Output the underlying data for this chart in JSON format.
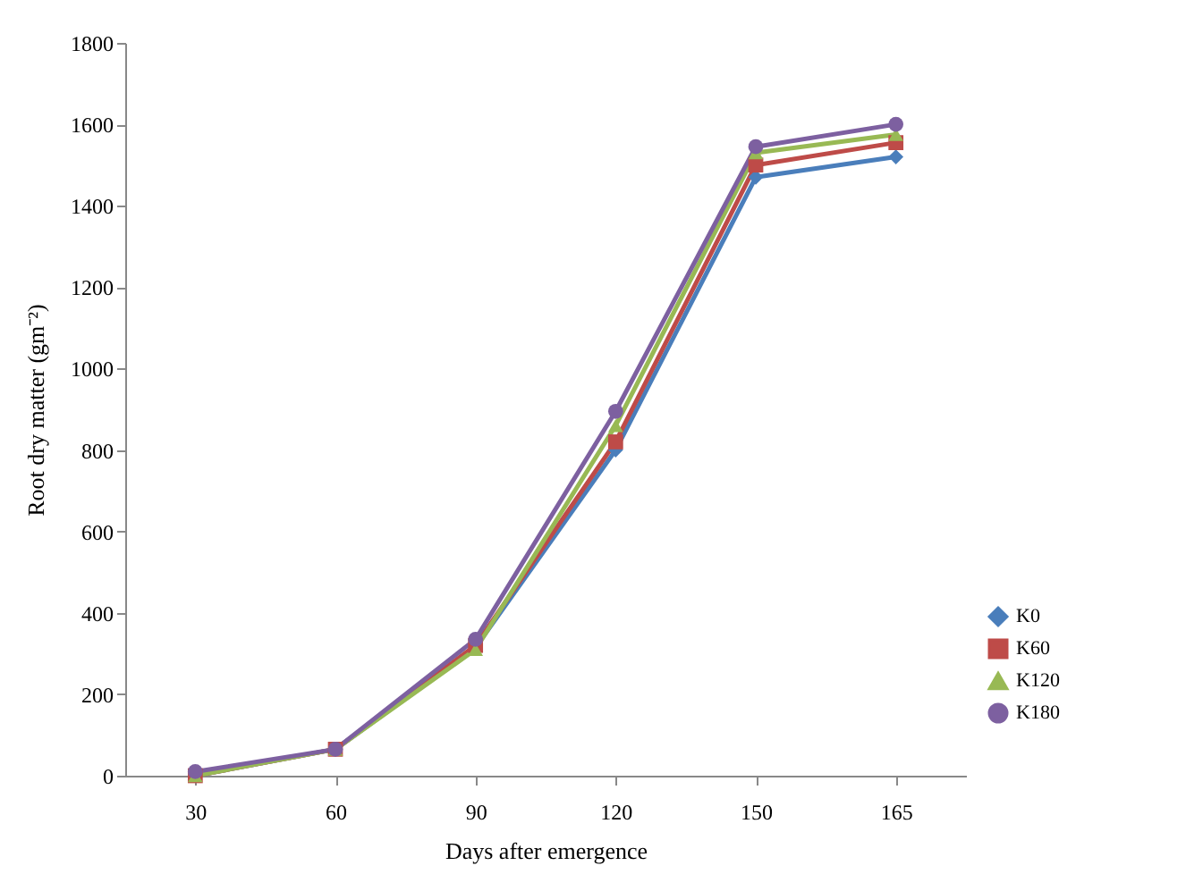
{
  "chart_data": {
    "type": "line",
    "xlabel": "Days after emergence",
    "ylabel": "Root dry matter (gm⁻²)",
    "categories": [
      "30",
      "60",
      "90",
      "120",
      "150",
      "165"
    ],
    "ylim": [
      0,
      1800
    ],
    "yticks": [
      0,
      200,
      400,
      600,
      800,
      1000,
      1200,
      1400,
      1600,
      1800
    ],
    "grid": false,
    "legend": "bottom right",
    "series": [
      {
        "name": "K0",
        "color": "#4a7ebb",
        "marker": "diamond",
        "values": [
          0,
          65,
          315,
          800,
          1470,
          1520
        ]
      },
      {
        "name": "K60",
        "color": "#be4b48",
        "marker": "square",
        "values": [
          0,
          65,
          320,
          820,
          1500,
          1555
        ]
      },
      {
        "name": "K120",
        "color": "#98b954",
        "marker": "triangle",
        "values": [
          0,
          65,
          310,
          860,
          1530,
          1575
        ]
      },
      {
        "name": "K180",
        "color": "#7d60a0",
        "marker": "circle",
        "values": [
          10,
          65,
          335,
          895,
          1545,
          1600
        ]
      }
    ]
  }
}
